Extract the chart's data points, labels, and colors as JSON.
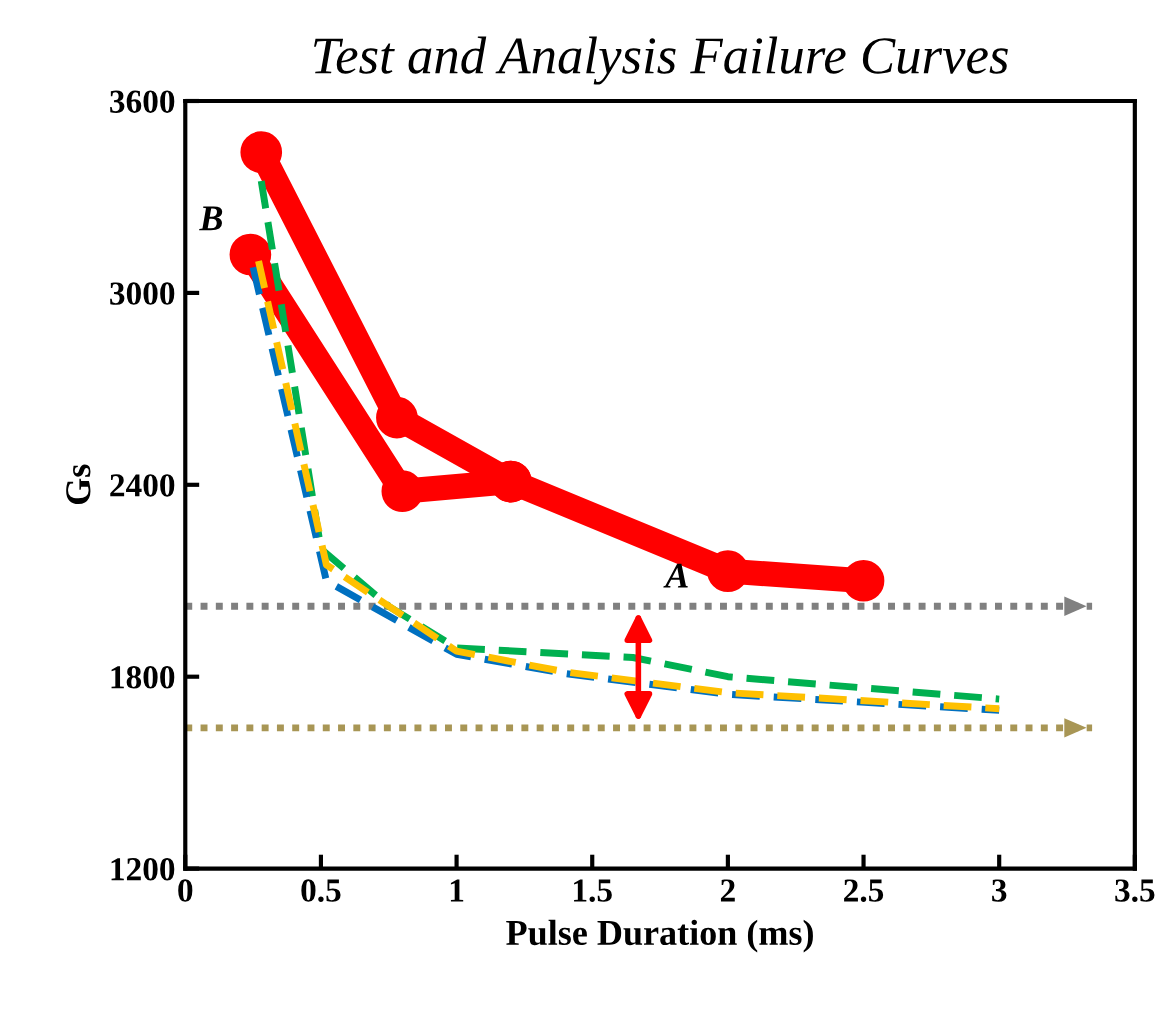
{
  "chart_data": {
    "type": "line",
    "title": "Test and Analysis Failure Curves",
    "xlabel": "Pulse Duration (ms)",
    "ylabel": "Gs",
    "xlim": [
      0,
      3.5
    ],
    "xticks": [
      0,
      {
        "value": 0.5,
        "label": "0.5"
      },
      1,
      {
        "value": 1.5,
        "label": "1.5"
      },
      2,
      {
        "value": 2.5,
        "label": "2.5"
      },
      3,
      {
        "value": 3.5,
        "label": "3.5"
      }
    ],
    "ylim": [
      1200,
      3600
    ],
    "yticks": [
      1200,
      1800,
      2400,
      3000,
      3600
    ],
    "grid": false,
    "series": [
      {
        "color": "#00b050",
        "line_style": "dashed",
        "marker": "none",
        "x": [
          0.28,
          0.5,
          0.75,
          1.0,
          1.65,
          2.0,
          3.0
        ],
        "values": [
          3350,
          2200,
          2020,
          1890,
          1860,
          1800,
          1730
        ]
      },
      {
        "color": "#0070c0",
        "line_style": "dashed",
        "marker": "none",
        "x": [
          0.25,
          0.52,
          1.0,
          1.4,
          2.0,
          3.0
        ],
        "values": [
          3080,
          2100,
          1870,
          1810,
          1745,
          1695
        ]
      },
      {
        "color": "#ffc000",
        "line_style": "dashed",
        "marker": "none",
        "x": [
          0.27,
          0.52,
          1.0,
          1.4,
          2.0,
          3.0
        ],
        "values": [
          3100,
          2150,
          1880,
          1815,
          1750,
          1700
        ]
      },
      {
        "color": "#ff0000",
        "line_style": "solid",
        "marker": "circle",
        "x": [
          0.28,
          0.78,
          1.2,
          2.0,
          2.5
        ],
        "values": [
          3440,
          2610,
          2410,
          2130,
          2100
        ]
      },
      {
        "color": "#ff0000",
        "line_style": "solid",
        "marker": "circle",
        "x": [
          0.24,
          0.8,
          1.2
        ],
        "values": [
          3120,
          2380,
          2410
        ]
      }
    ],
    "ref_lines": [
      {
        "axis": "y",
        "value": 2020,
        "color": "#808080",
        "line_style": "dotted"
      },
      {
        "axis": "y",
        "value": 1640,
        "color": "#a89655",
        "line_style": "dotted"
      }
    ],
    "annotations": [
      {
        "text": "A",
        "x": 1.67,
        "y": 2020
      },
      {
        "text": "B",
        "x": 0.24,
        "y": 3120
      }
    ]
  }
}
